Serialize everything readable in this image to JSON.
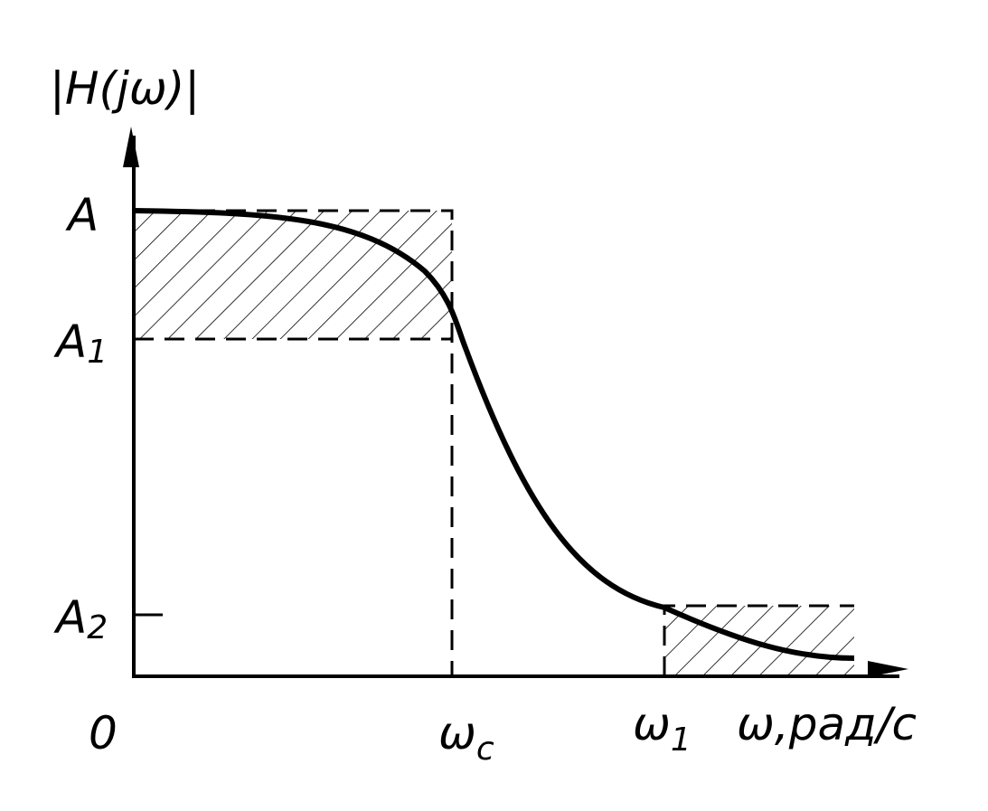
{
  "y_axis_label": "|H(jω)|",
  "x_axis_label": "ω,рад/с",
  "origin_label": "0",
  "levels": [
    {
      "symbol": "A"
    },
    {
      "symbol": "A",
      "subscript": "1"
    },
    {
      "symbol": "A",
      "subscript": "2"
    }
  ],
  "frequencies": [
    {
      "symbol": "ω",
      "subscript": "c"
    },
    {
      "symbol": "ω",
      "subscript": "1"
    }
  ]
}
